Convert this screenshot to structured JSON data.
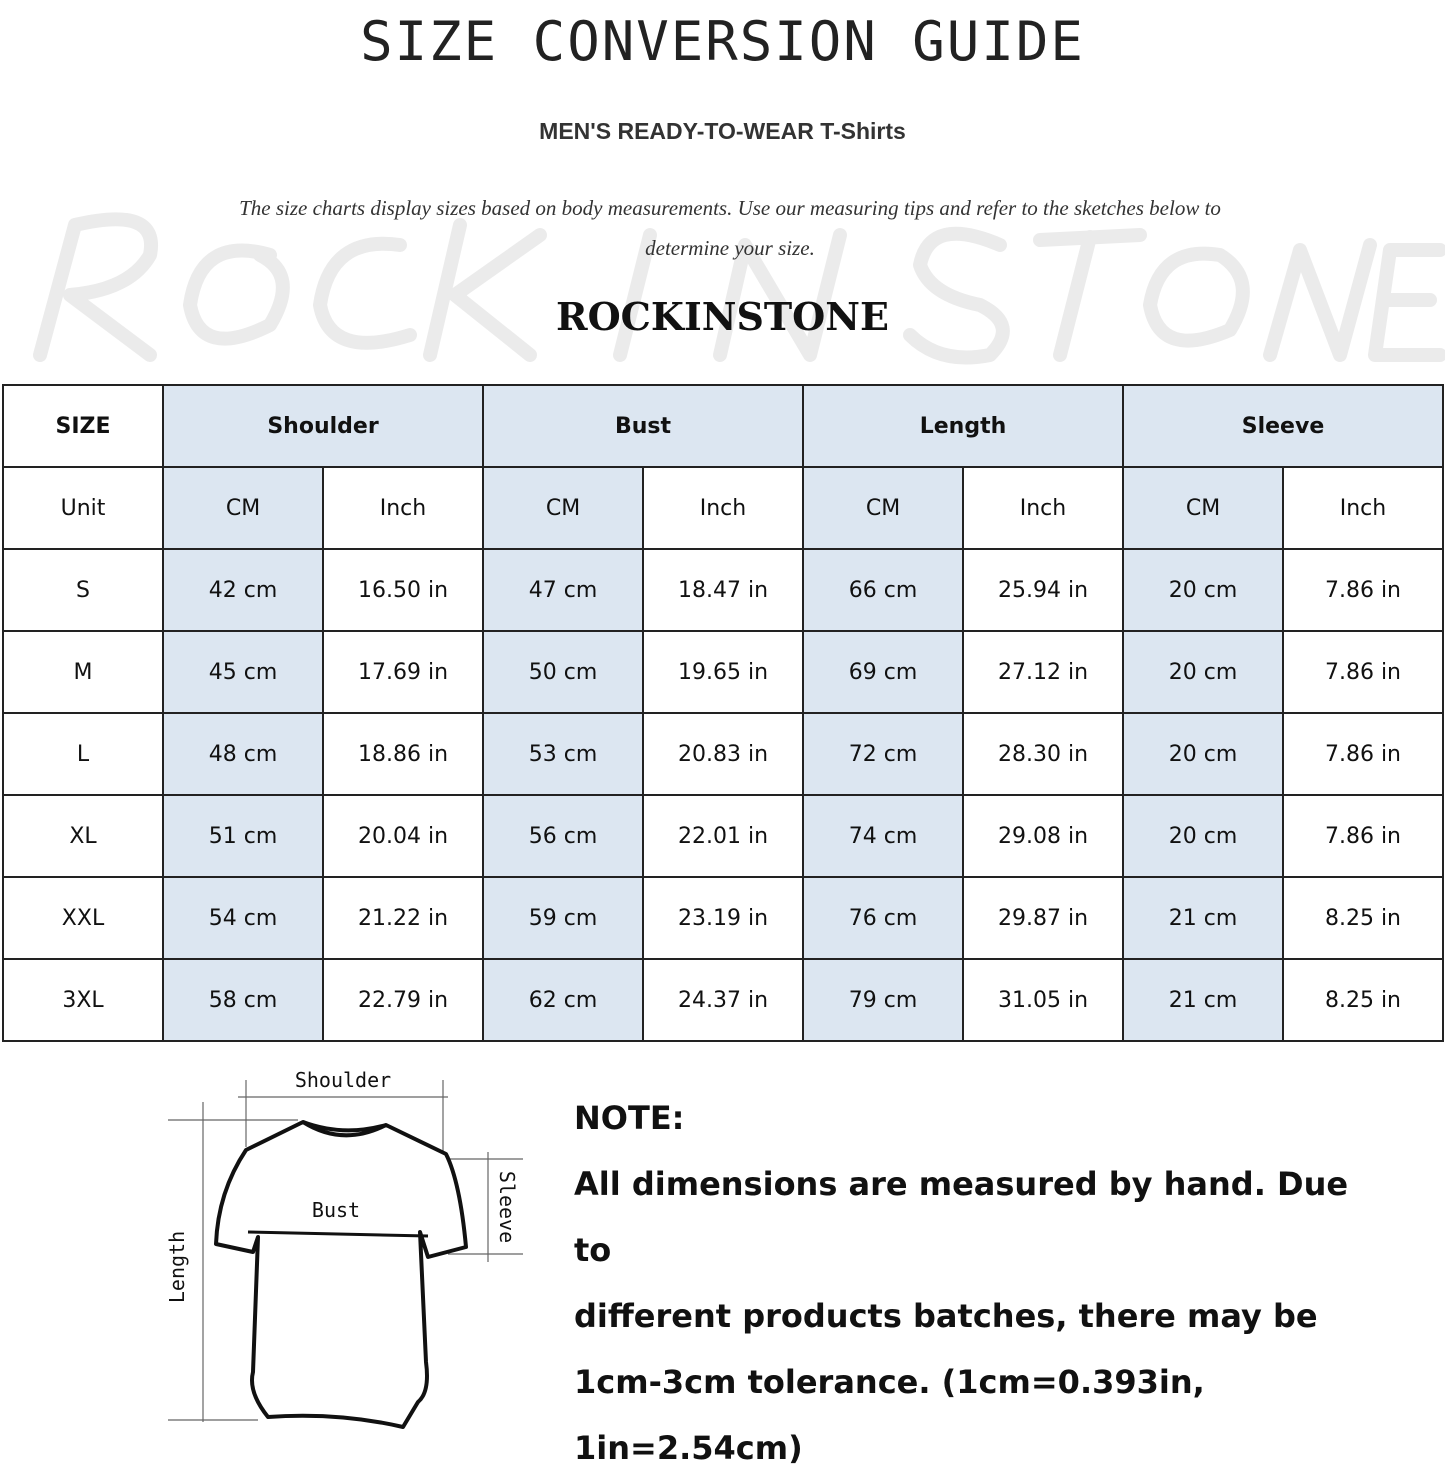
{
  "header": {
    "title": "SIZE CONVERSION GUIDE",
    "subtitle": "MEN'S READY-TO-WEAR T-Shirts",
    "intro": "The size charts display sizes based on body measurements. Use our measuring tips and refer to the sketches below to determine your size.",
    "watermark": "ROCK IN STONE",
    "brand": "ROCKINSTONE"
  },
  "table": {
    "header": [
      "SIZE",
      "Shoulder",
      "Bust",
      "Length",
      "Sleeve"
    ],
    "units": [
      "Unit",
      "CM",
      "Inch",
      "CM",
      "Inch",
      "CM",
      "Inch",
      "CM",
      "Inch"
    ],
    "rows": [
      [
        "S",
        "42 cm",
        "16.50 in",
        "47 cm",
        "18.47  in",
        "66 cm",
        "25.94  in",
        "20 cm",
        "7.86  in"
      ],
      [
        "M",
        "45 cm",
        "17.69  in",
        "50 cm",
        "19.65  in",
        "69 cm",
        "27.12  in",
        "20 cm",
        "7.86  in"
      ],
      [
        "L",
        "48 cm",
        "18.86  in",
        "53 cm",
        "20.83  in",
        "72 cm",
        "28.30  in",
        "20 cm",
        "7.86  in"
      ],
      [
        "XL",
        "51 cm",
        "20.04  in",
        "56 cm",
        "22.01  in",
        "74 cm",
        "29.08  in",
        "20 cm",
        "7.86  in"
      ],
      [
        "XXL",
        "54 cm",
        "21.22  in",
        "59 cm",
        "23.19  in",
        "76 cm",
        "29.87  in",
        "21 cm",
        "8.25  in"
      ],
      [
        "3XL",
        "58 cm",
        "22.79  in",
        "62 cm",
        "24.37  in",
        "79 cm",
        "31.05  in",
        "21 cm",
        "8.25  in"
      ]
    ],
    "highlight_color": "#dce6f1"
  },
  "diagram": {
    "shoulder": "Shoulder",
    "bust": "Bust",
    "sleeve": "Sleeve",
    "length": "Length"
  },
  "note": {
    "heading": "NOTE:",
    "line1": "All dimensions are measured by hand. Due to",
    "line2": "different products batches, there may be",
    "line3": "1cm-3cm tolerance. (1cm=0.393in, 1in=2.54cm)"
  }
}
